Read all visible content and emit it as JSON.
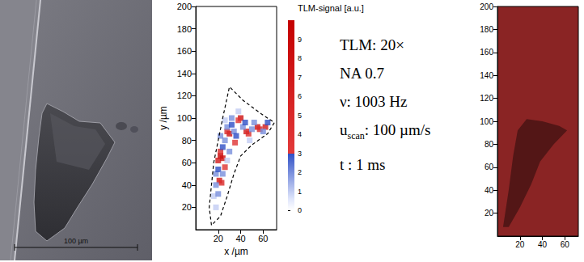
{
  "photo": {
    "scale_bar": "100 µm"
  },
  "parameters": [
    [
      {
        "text": "TLM: 20×"
      }
    ],
    [
      {
        "text": "NA 0.7"
      }
    ],
    [
      {
        "text": "ν: 1003 Hz"
      }
    ],
    [
      {
        "text": "u"
      },
      {
        "text": "scan",
        "sub": true
      },
      {
        "text": ": 100 µm/s"
      }
    ],
    [
      {
        "text": "t : 1 ms"
      }
    ]
  ],
  "chart_data": [
    {
      "type": "heatmap",
      "x_label": "x /µm",
      "y_label": "y /µm",
      "xlim": [
        0,
        72
      ],
      "ylim": [
        0,
        200
      ],
      "xticks": [
        20,
        40,
        60
      ],
      "yticks": [
        20,
        40,
        60,
        80,
        100,
        120,
        140,
        160,
        180,
        200
      ],
      "colorbar": {
        "title": "TLM-signal [a.u.]",
        "range": [
          0,
          10
        ],
        "ticks": [
          0,
          1,
          2,
          3,
          4,
          5,
          6,
          7,
          8,
          9
        ]
      },
      "cells": [
        [
          22,
          66,
          9
        ],
        [
          24,
          64,
          8
        ],
        [
          20,
          62,
          7
        ],
        [
          22,
          70,
          5
        ],
        [
          21,
          44,
          7
        ],
        [
          23,
          42,
          5
        ],
        [
          30,
          86,
          8
        ],
        [
          28,
          88,
          5
        ],
        [
          40,
          100,
          8
        ],
        [
          38,
          98,
          4
        ],
        [
          45,
          88,
          7
        ],
        [
          47,
          86,
          5
        ],
        [
          55,
          92,
          8
        ],
        [
          57,
          90,
          5
        ],
        [
          62,
          92,
          7
        ],
        [
          35,
          78,
          4
        ],
        [
          26,
          56,
          4
        ],
        [
          18,
          50,
          2
        ],
        [
          20,
          54,
          3
        ],
        [
          18,
          40,
          2
        ],
        [
          16,
          30,
          1
        ],
        [
          24,
          74,
          3
        ],
        [
          26,
          80,
          2
        ],
        [
          28,
          92,
          2
        ],
        [
          32,
          94,
          3
        ],
        [
          34,
          88,
          2
        ],
        [
          36,
          84,
          3
        ],
        [
          42,
          92,
          2
        ],
        [
          44,
          96,
          3
        ],
        [
          50,
          90,
          2
        ],
        [
          52,
          96,
          2
        ],
        [
          60,
          88,
          2
        ],
        [
          64,
          96,
          3
        ],
        [
          30,
          70,
          2
        ],
        [
          32,
          100,
          2
        ],
        [
          38,
          106,
          1
        ],
        [
          26,
          98,
          1
        ],
        [
          22,
          84,
          2
        ],
        [
          18,
          20,
          1
        ],
        [
          20,
          32,
          2
        ],
        [
          24,
          50,
          2
        ],
        [
          28,
          62,
          1
        ],
        [
          48,
          80,
          1
        ]
      ],
      "outline": [
        [
          14,
          4
        ],
        [
          12,
          20
        ],
        [
          14,
          40
        ],
        [
          16,
          60
        ],
        [
          20,
          80
        ],
        [
          24,
          100
        ],
        [
          30,
          128
        ],
        [
          42,
          116
        ],
        [
          58,
          104
        ],
        [
          70,
          96
        ],
        [
          64,
          86
        ],
        [
          50,
          76
        ],
        [
          40,
          66
        ],
        [
          34,
          50
        ],
        [
          28,
          30
        ],
        [
          22,
          12
        ],
        [
          14,
          4
        ]
      ]
    },
    {
      "type": "heatmap",
      "xlim": [
        0,
        72
      ],
      "ylim": [
        0,
        200
      ],
      "xticks": [
        20,
        40,
        60
      ],
      "yticks": [
        20,
        40,
        60,
        80,
        100,
        120,
        140,
        160,
        180,
        200
      ],
      "color": "#8a2424",
      "dark_region": [
        [
          5,
          8
        ],
        [
          10,
          40
        ],
        [
          14,
          70
        ],
        [
          18,
          92
        ],
        [
          26,
          102
        ],
        [
          40,
          100
        ],
        [
          55,
          96
        ],
        [
          62,
          92
        ],
        [
          50,
          80
        ],
        [
          38,
          65
        ],
        [
          30,
          45
        ],
        [
          20,
          25
        ],
        [
          10,
          8
        ]
      ]
    }
  ]
}
